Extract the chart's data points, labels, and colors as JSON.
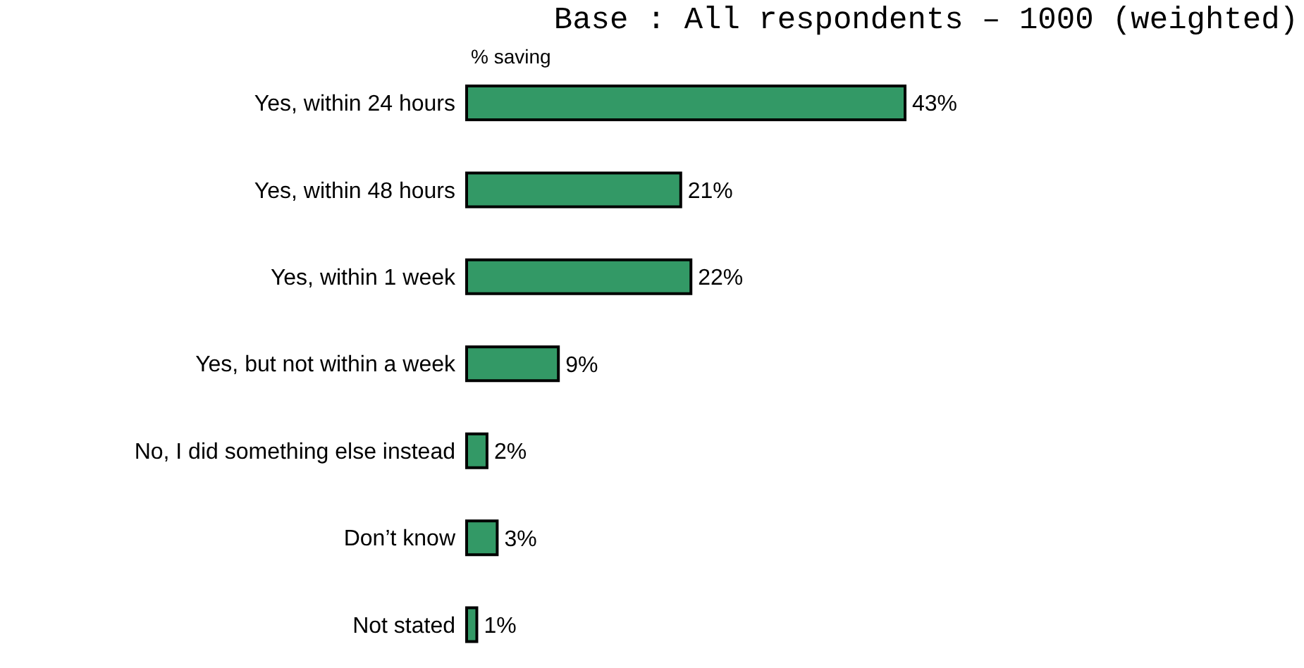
{
  "chart_data": {
    "type": "bar",
    "orientation": "horizontal",
    "title": "Base : All respondents – 1000 (weighted)",
    "xlabel": "% saving",
    "categories": [
      "Yes, within 24 hours",
      "Yes, within 48 hours",
      "Yes, within 1 week",
      "Yes, but not within a week",
      "No, I did something else instead",
      "Don’t know",
      "Not stated"
    ],
    "values": [
      43,
      21,
      22,
      9,
      2,
      3,
      1
    ],
    "value_labels": [
      "43%",
      "21%",
      "22%",
      "9%",
      "2%",
      "3%",
      "1%"
    ],
    "color": "#339966",
    "grid": false,
    "legend": false
  }
}
